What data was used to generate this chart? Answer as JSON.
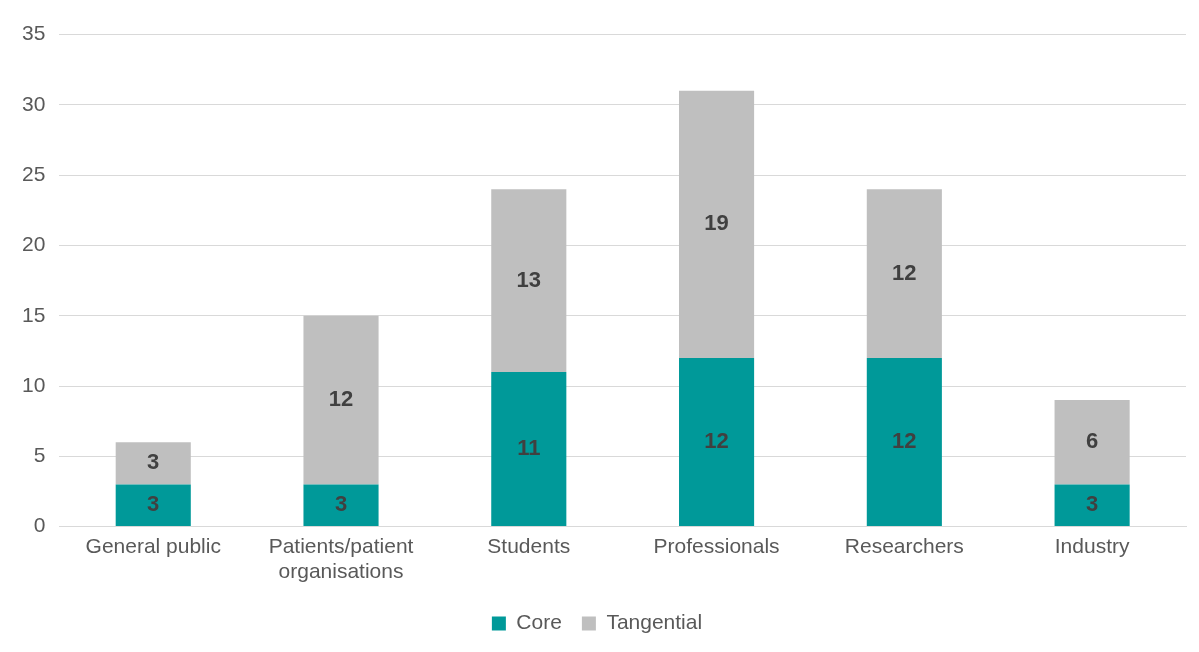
{
  "chart_data": {
    "type": "bar",
    "stacked": true,
    "categories": [
      "General public",
      "Patients/patient organisations",
      "Students",
      "Professionals",
      "Researchers",
      "Industry"
    ],
    "series": [
      {
        "name": "Core",
        "color": "#009999",
        "values": [
          3,
          3,
          11,
          12,
          12,
          3
        ]
      },
      {
        "name": "Tangential",
        "color": "#bfbfbf",
        "values": [
          3,
          12,
          13,
          19,
          12,
          6
        ]
      }
    ],
    "ylim": [
      0,
      35
    ],
    "yticks": [
      0,
      5,
      10,
      15,
      20,
      25,
      30,
      35
    ],
    "grid": "y",
    "legend": "bottom",
    "data_labels": true
  }
}
